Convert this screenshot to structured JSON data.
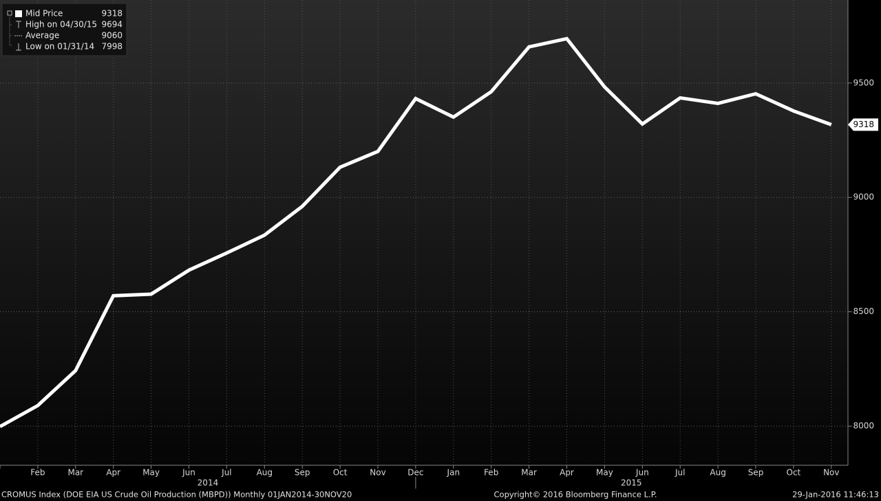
{
  "chart_data": {
    "type": "line",
    "categories": [
      null,
      "Feb",
      "Mar",
      "Apr",
      "May",
      "Jun",
      "Jul",
      "Aug",
      "Sep",
      "Oct",
      "Nov",
      "Dec",
      "Jan",
      "Feb",
      "Mar",
      "Apr",
      "May",
      "Jun",
      "Jul",
      "Aug",
      "Sep",
      "Oct",
      "Nov"
    ],
    "year_labels": [
      "2014",
      "2015"
    ],
    "series": [
      {
        "name": "Mid Price",
        "color": "#ffffff",
        "values": [
          7998,
          8090,
          8243,
          8570,
          8577,
          8682,
          8757,
          8835,
          8961,
          9132,
          9201,
          9432,
          9351,
          9462,
          9658,
          9694,
          9483,
          9321,
          9435,
          9411,
          9453,
          9378,
          9318
        ]
      }
    ],
    "legend": [
      {
        "label": "Mid Price",
        "value": 9318
      },
      {
        "label": "High on 04/30/15",
        "value": 9694
      },
      {
        "label": "Average",
        "value": 9060
      },
      {
        "label": "Low on 01/31/14",
        "value": 7998
      }
    ],
    "ylim": [
      7829,
      9863
    ],
    "yticks": [
      8000,
      8500,
      9000,
      9500
    ],
    "grid": true,
    "footer": {
      "left": "CROMUS Index (DOE EIA US Crude Oil Production (MBPD))  Monthly 01JAN2014-30NOV20",
      "center": "Copyright© 2016 Bloomberg Finance L.P.",
      "right": "29-Jan-2016 11:46:13"
    }
  }
}
